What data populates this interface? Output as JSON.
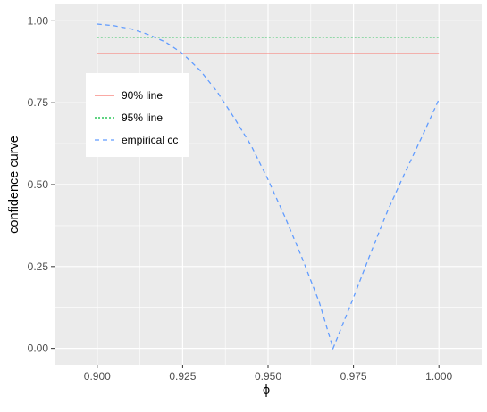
{
  "chart_data": {
    "type": "line",
    "title": "",
    "xlabel": "ϕ",
    "ylabel": "confidence curve",
    "xlim": [
      0.8875,
      1.0125
    ],
    "ylim": [
      -0.05,
      1.05
    ],
    "x_ticks": [
      0.9,
      0.925,
      0.95,
      0.975,
      1.0
    ],
    "x_tick_labels": [
      "0.900",
      "0.925",
      "0.950",
      "0.975",
      "1.000"
    ],
    "y_ticks": [
      0.0,
      0.25,
      0.5,
      0.75,
      1.0
    ],
    "y_tick_labels": [
      "0.00",
      "0.25",
      "0.50",
      "0.75",
      "1.00"
    ],
    "grid": true,
    "legend_position": "top-left",
    "series": [
      {
        "name": "90% line",
        "color": "#F8766D",
        "dash": "solid",
        "x": [
          0.9,
          1.0
        ],
        "y": [
          0.9,
          0.9
        ]
      },
      {
        "name": "95% line",
        "color": "#00BA38",
        "dash": "dotted",
        "x": [
          0.9,
          1.0
        ],
        "y": [
          0.95,
          0.95
        ]
      },
      {
        "name": "empirical cc",
        "color": "#619CFF",
        "dash": "dashed",
        "x": [
          0.9,
          0.905,
          0.91,
          0.915,
          0.92,
          0.925,
          0.93,
          0.935,
          0.94,
          0.945,
          0.95,
          0.955,
          0.96,
          0.965,
          0.969,
          0.975,
          0.98,
          0.985,
          0.99,
          0.995,
          1.0
        ],
        "y": [
          0.99,
          0.985,
          0.975,
          0.958,
          0.935,
          0.9,
          0.85,
          0.785,
          0.705,
          0.62,
          0.515,
          0.4,
          0.275,
          0.14,
          0.0,
          0.155,
          0.29,
          0.42,
          0.535,
          0.645,
          0.76
        ]
      }
    ]
  }
}
